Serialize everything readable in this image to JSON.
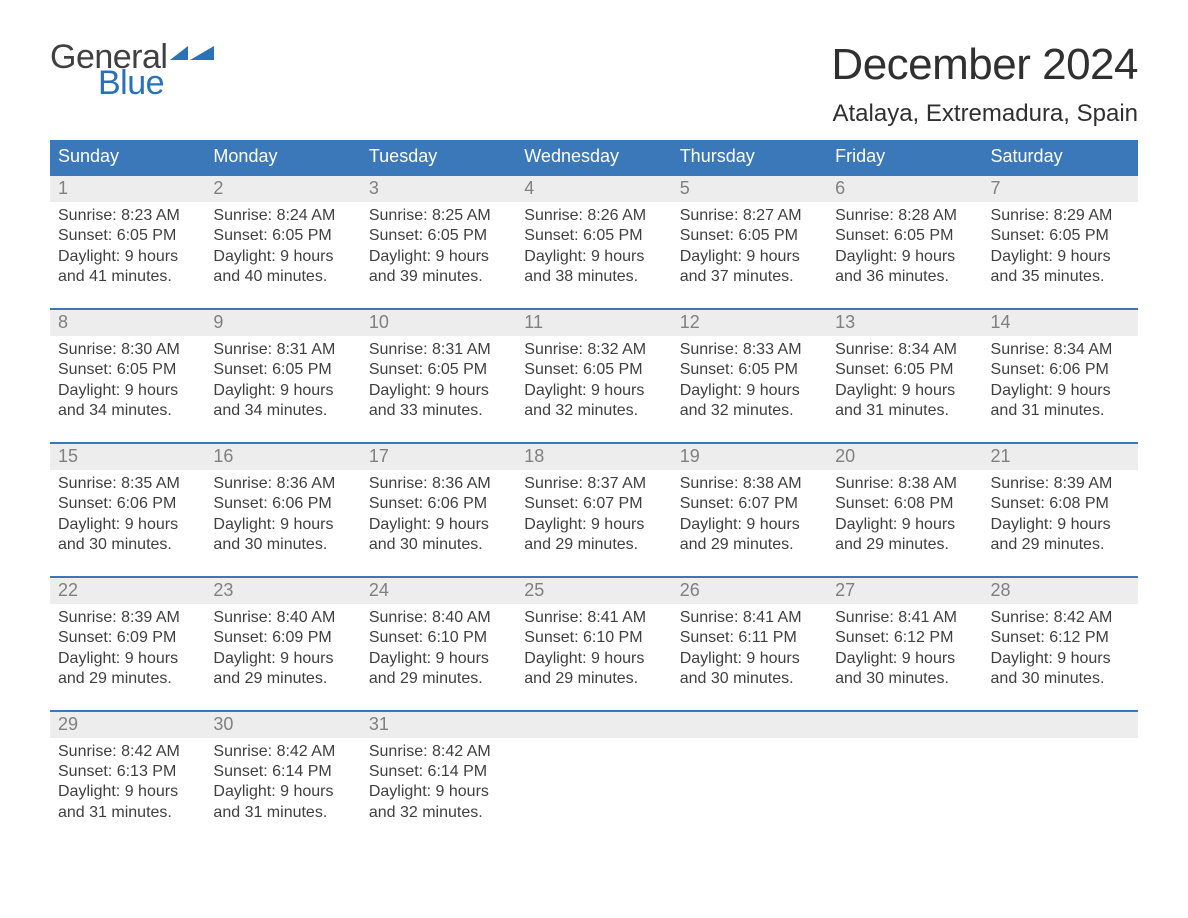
{
  "brand": {
    "line1": "General",
    "line2": "Blue",
    "accent_color": "#2a71b8"
  },
  "title": "December 2024",
  "location": "Atalaya, Extremadura, Spain",
  "colors": {
    "header_bg": "#3a78b9",
    "header_text": "#ffffff",
    "week_border": "#3a78b9",
    "daynum_bg": "#ededed",
    "daynum_text": "#808080",
    "body_text": "#404040",
    "page_bg": "#ffffff"
  },
  "typography": {
    "title_fontsize": 44,
    "location_fontsize": 24,
    "dayheader_fontsize": 18,
    "daynum_fontsize": 18,
    "body_fontsize": 16
  },
  "day_headers": [
    "Sunday",
    "Monday",
    "Tuesday",
    "Wednesday",
    "Thursday",
    "Friday",
    "Saturday"
  ],
  "weeks": [
    [
      {
        "n": "1",
        "sunrise": "8:23 AM",
        "sunset": "6:05 PM",
        "dl1": "Daylight: 9 hours",
        "dl2": "and 41 minutes."
      },
      {
        "n": "2",
        "sunrise": "8:24 AM",
        "sunset": "6:05 PM",
        "dl1": "Daylight: 9 hours",
        "dl2": "and 40 minutes."
      },
      {
        "n": "3",
        "sunrise": "8:25 AM",
        "sunset": "6:05 PM",
        "dl1": "Daylight: 9 hours",
        "dl2": "and 39 minutes."
      },
      {
        "n": "4",
        "sunrise": "8:26 AM",
        "sunset": "6:05 PM",
        "dl1": "Daylight: 9 hours",
        "dl2": "and 38 minutes."
      },
      {
        "n": "5",
        "sunrise": "8:27 AM",
        "sunset": "6:05 PM",
        "dl1": "Daylight: 9 hours",
        "dl2": "and 37 minutes."
      },
      {
        "n": "6",
        "sunrise": "8:28 AM",
        "sunset": "6:05 PM",
        "dl1": "Daylight: 9 hours",
        "dl2": "and 36 minutes."
      },
      {
        "n": "7",
        "sunrise": "8:29 AM",
        "sunset": "6:05 PM",
        "dl1": "Daylight: 9 hours",
        "dl2": "and 35 minutes."
      }
    ],
    [
      {
        "n": "8",
        "sunrise": "8:30 AM",
        "sunset": "6:05 PM",
        "dl1": "Daylight: 9 hours",
        "dl2": "and 34 minutes."
      },
      {
        "n": "9",
        "sunrise": "8:31 AM",
        "sunset": "6:05 PM",
        "dl1": "Daylight: 9 hours",
        "dl2": "and 34 minutes."
      },
      {
        "n": "10",
        "sunrise": "8:31 AM",
        "sunset": "6:05 PM",
        "dl1": "Daylight: 9 hours",
        "dl2": "and 33 minutes."
      },
      {
        "n": "11",
        "sunrise": "8:32 AM",
        "sunset": "6:05 PM",
        "dl1": "Daylight: 9 hours",
        "dl2": "and 32 minutes."
      },
      {
        "n": "12",
        "sunrise": "8:33 AM",
        "sunset": "6:05 PM",
        "dl1": "Daylight: 9 hours",
        "dl2": "and 32 minutes."
      },
      {
        "n": "13",
        "sunrise": "8:34 AM",
        "sunset": "6:05 PM",
        "dl1": "Daylight: 9 hours",
        "dl2": "and 31 minutes."
      },
      {
        "n": "14",
        "sunrise": "8:34 AM",
        "sunset": "6:06 PM",
        "dl1": "Daylight: 9 hours",
        "dl2": "and 31 minutes."
      }
    ],
    [
      {
        "n": "15",
        "sunrise": "8:35 AM",
        "sunset": "6:06 PM",
        "dl1": "Daylight: 9 hours",
        "dl2": "and 30 minutes."
      },
      {
        "n": "16",
        "sunrise": "8:36 AM",
        "sunset": "6:06 PM",
        "dl1": "Daylight: 9 hours",
        "dl2": "and 30 minutes."
      },
      {
        "n": "17",
        "sunrise": "8:36 AM",
        "sunset": "6:06 PM",
        "dl1": "Daylight: 9 hours",
        "dl2": "and 30 minutes."
      },
      {
        "n": "18",
        "sunrise": "8:37 AM",
        "sunset": "6:07 PM",
        "dl1": "Daylight: 9 hours",
        "dl2": "and 29 minutes."
      },
      {
        "n": "19",
        "sunrise": "8:38 AM",
        "sunset": "6:07 PM",
        "dl1": "Daylight: 9 hours",
        "dl2": "and 29 minutes."
      },
      {
        "n": "20",
        "sunrise": "8:38 AM",
        "sunset": "6:08 PM",
        "dl1": "Daylight: 9 hours",
        "dl2": "and 29 minutes."
      },
      {
        "n": "21",
        "sunrise": "8:39 AM",
        "sunset": "6:08 PM",
        "dl1": "Daylight: 9 hours",
        "dl2": "and 29 minutes."
      }
    ],
    [
      {
        "n": "22",
        "sunrise": "8:39 AM",
        "sunset": "6:09 PM",
        "dl1": "Daylight: 9 hours",
        "dl2": "and 29 minutes."
      },
      {
        "n": "23",
        "sunrise": "8:40 AM",
        "sunset": "6:09 PM",
        "dl1": "Daylight: 9 hours",
        "dl2": "and 29 minutes."
      },
      {
        "n": "24",
        "sunrise": "8:40 AM",
        "sunset": "6:10 PM",
        "dl1": "Daylight: 9 hours",
        "dl2": "and 29 minutes."
      },
      {
        "n": "25",
        "sunrise": "8:41 AM",
        "sunset": "6:10 PM",
        "dl1": "Daylight: 9 hours",
        "dl2": "and 29 minutes."
      },
      {
        "n": "26",
        "sunrise": "8:41 AM",
        "sunset": "6:11 PM",
        "dl1": "Daylight: 9 hours",
        "dl2": "and 30 minutes."
      },
      {
        "n": "27",
        "sunrise": "8:41 AM",
        "sunset": "6:12 PM",
        "dl1": "Daylight: 9 hours",
        "dl2": "and 30 minutes."
      },
      {
        "n": "28",
        "sunrise": "8:42 AM",
        "sunset": "6:12 PM",
        "dl1": "Daylight: 9 hours",
        "dl2": "and 30 minutes."
      }
    ],
    [
      {
        "n": "29",
        "sunrise": "8:42 AM",
        "sunset": "6:13 PM",
        "dl1": "Daylight: 9 hours",
        "dl2": "and 31 minutes."
      },
      {
        "n": "30",
        "sunrise": "8:42 AM",
        "sunset": "6:14 PM",
        "dl1": "Daylight: 9 hours",
        "dl2": "and 31 minutes."
      },
      {
        "n": "31",
        "sunrise": "8:42 AM",
        "sunset": "6:14 PM",
        "dl1": "Daylight: 9 hours",
        "dl2": "and 32 minutes."
      },
      {
        "empty": true
      },
      {
        "empty": true
      },
      {
        "empty": true
      },
      {
        "empty": true
      }
    ]
  ],
  "labels": {
    "sunrise_prefix": "Sunrise: ",
    "sunset_prefix": "Sunset: "
  }
}
